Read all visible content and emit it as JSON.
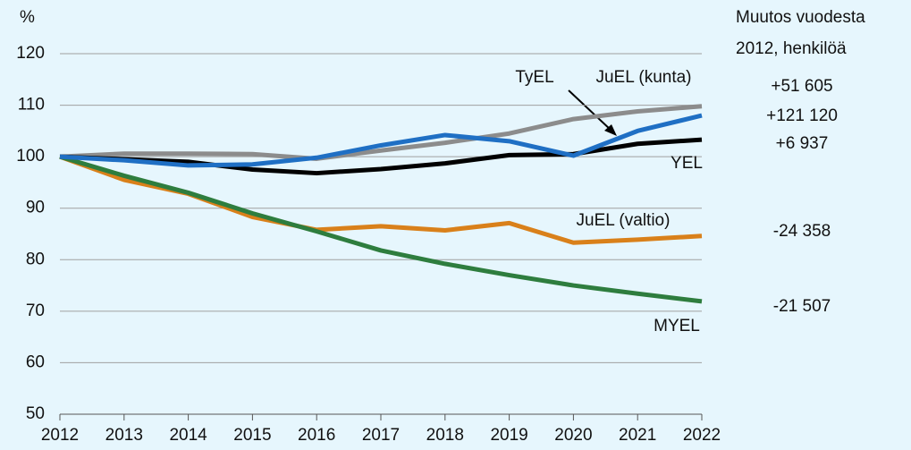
{
  "chart_data": {
    "type": "line",
    "y_unit": "%",
    "annotation_title": [
      "Muutos vuodesta",
      "2012, henkilöä"
    ],
    "x": [
      2012,
      2013,
      2014,
      2015,
      2016,
      2017,
      2018,
      2019,
      2020,
      2021,
      2022
    ],
    "xlim": [
      2012,
      2022
    ],
    "xticks": [
      2012,
      2013,
      2014,
      2015,
      2016,
      2017,
      2018,
      2019,
      2020,
      2021,
      2022
    ],
    "ylim": [
      50,
      120
    ],
    "yticks": [
      50,
      60,
      70,
      80,
      90,
      100,
      110,
      120
    ],
    "grid": true,
    "series": [
      {
        "name": "JuEL (kunta)",
        "color": "#8c8c8c",
        "change": "+51 605",
        "values": [
          100,
          100.6,
          100.6,
          100.5,
          99.6,
          101.2,
          102.7,
          104.5,
          107.3,
          108.8,
          109.8
        ]
      },
      {
        "name": "YEL",
        "color": "#000000",
        "change": "+6 937",
        "values": [
          100,
          99.5,
          99.0,
          97.5,
          96.8,
          97.6,
          98.7,
          100.3,
          100.5,
          102.5,
          103.3
        ]
      },
      {
        "name": "JuEL (valtio)",
        "color": "#d9801a",
        "change": "-24 358",
        "values": [
          100,
          95.5,
          92.8,
          88.3,
          85.8,
          86.5,
          85.7,
          87.1,
          83.3,
          83.9,
          84.6
        ]
      },
      {
        "name": "MYEL",
        "color": "#2e7d3e",
        "change": "-21 507",
        "values": [
          100,
          96.3,
          93.0,
          89.0,
          85.5,
          81.8,
          79.2,
          77.0,
          75.0,
          73.4,
          71.9
        ]
      },
      {
        "name": "TyEL",
        "color": "#1f6fc4",
        "change": "+121 120",
        "values": [
          100,
          99.3,
          98.3,
          98.5,
          99.8,
          102.2,
          104.2,
          103.0,
          100.2,
          105.0,
          108.0
        ]
      }
    ]
  }
}
